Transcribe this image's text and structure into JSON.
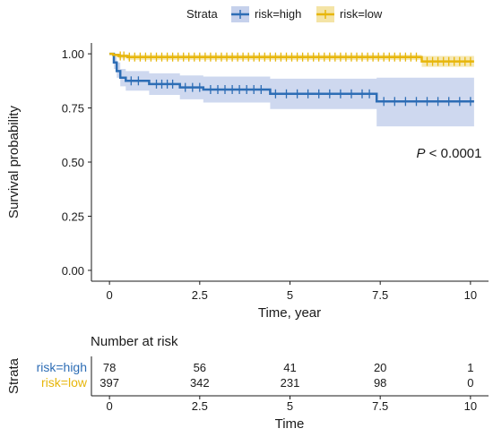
{
  "chart_data": [
    {
      "type": "line",
      "title": "",
      "xlabel": "Time, year",
      "ylabel": "Survival probability",
      "xlim": [
        -0.5,
        10.5
      ],
      "ylim": [
        -0.05,
        1.05
      ],
      "x_ticks": [
        0,
        2.5,
        5,
        7.5,
        10
      ],
      "x_tick_labels": [
        "0",
        "2.5",
        "5",
        "7.5",
        "10"
      ],
      "y_ticks": [
        0,
        0.25,
        0.5,
        0.75,
        1.0
      ],
      "y_tick_labels": [
        "0.00",
        "0.25",
        "0.50",
        "0.75",
        "1.00"
      ],
      "grid": false,
      "legend": {
        "title": "Strata",
        "placement": "top",
        "entries": [
          "risk=high",
          "risk=low"
        ]
      },
      "annotation": {
        "prefix": "P",
        "text": " < 0.0001",
        "x": 8.5,
        "y": 0.52
      },
      "series": [
        {
          "name": "risk=high",
          "color": "#2d6db5",
          "band_color": "#c6d1ec",
          "steps": [
            [
              0,
              1.0
            ],
            [
              0.12,
              0.96
            ],
            [
              0.2,
              0.92
            ],
            [
              0.3,
              0.89
            ],
            [
              0.45,
              0.875
            ],
            [
              1.1,
              0.86
            ],
            [
              1.95,
              0.845
            ],
            [
              2.6,
              0.835
            ],
            [
              4.45,
              0.815
            ],
            [
              7.4,
              0.78
            ],
            [
              10.1,
              0.78
            ]
          ],
          "lower": [
            [
              0,
              1.0
            ],
            [
              0.12,
              0.93
            ],
            [
              0.2,
              0.89
            ],
            [
              0.3,
              0.85
            ],
            [
              0.45,
              0.83
            ],
            [
              1.1,
              0.81
            ],
            [
              1.95,
              0.79
            ],
            [
              2.6,
              0.775
            ],
            [
              4.45,
              0.745
            ],
            [
              7.4,
              0.665
            ],
            [
              10.1,
              0.665
            ]
          ],
          "upper": [
            [
              0,
              1.0
            ],
            [
              0.12,
              0.99
            ],
            [
              0.2,
              0.96
            ],
            [
              0.3,
              0.93
            ],
            [
              0.45,
              0.92
            ],
            [
              1.1,
              0.91
            ],
            [
              1.95,
              0.9
            ],
            [
              2.6,
              0.895
            ],
            [
              4.45,
              0.885
            ],
            [
              7.4,
              0.89
            ],
            [
              10.1,
              0.89
            ]
          ],
          "censor": [
            0.6,
            0.8,
            1.3,
            1.45,
            1.6,
            1.75,
            2.1,
            2.3,
            2.5,
            2.8,
            3.0,
            3.2,
            3.4,
            3.6,
            3.8,
            4.0,
            4.2,
            4.6,
            4.9,
            5.2,
            5.5,
            5.8,
            6.1,
            6.4,
            6.7,
            7.0,
            7.2,
            7.6,
            7.9,
            8.2,
            8.5,
            8.8,
            9.1,
            9.4,
            9.7,
            10.0
          ]
        },
        {
          "name": "risk=low",
          "color": "#e7b60b",
          "band_color": "#f4e4a6",
          "steps": [
            [
              0,
              1.0
            ],
            [
              0.1,
              0.995
            ],
            [
              0.25,
              0.99
            ],
            [
              0.5,
              0.985
            ],
            [
              8.65,
              0.965
            ],
            [
              10.1,
              0.965
            ]
          ],
          "lower": [
            [
              0,
              1.0
            ],
            [
              0.1,
              0.985
            ],
            [
              0.25,
              0.978
            ],
            [
              0.5,
              0.972
            ],
            [
              8.65,
              0.94
            ],
            [
              10.1,
              0.94
            ]
          ],
          "upper": [
            [
              0,
              1.0
            ],
            [
              0.1,
              1.0
            ],
            [
              0.25,
              0.998
            ],
            [
              0.5,
              0.996
            ],
            [
              8.65,
              0.99
            ],
            [
              10.1,
              0.99
            ]
          ],
          "censor": [
            0.3,
            0.4,
            0.55,
            0.7,
            0.85,
            1.0,
            1.15,
            1.3,
            1.45,
            1.6,
            1.75,
            1.9,
            2.05,
            2.2,
            2.35,
            2.5,
            2.65,
            2.8,
            2.95,
            3.1,
            3.25,
            3.4,
            3.55,
            3.7,
            3.85,
            4.0,
            4.15,
            4.3,
            4.45,
            4.6,
            4.75,
            4.9,
            5.05,
            5.2,
            5.35,
            5.5,
            5.65,
            5.8,
            5.95,
            6.1,
            6.25,
            6.4,
            6.55,
            6.7,
            6.85,
            7.0,
            7.15,
            7.3,
            7.45,
            7.6,
            7.75,
            7.9,
            8.05,
            8.2,
            8.35,
            8.5,
            8.8,
            8.95,
            9.1,
            9.25,
            9.4,
            9.55,
            9.7,
            9.85,
            10.0
          ]
        }
      ]
    },
    {
      "type": "table",
      "title": "Number at risk",
      "xlabel": "Time",
      "ylabel": "Strata",
      "xlim": [
        -0.5,
        10.5
      ],
      "x_ticks": [
        0,
        2.5,
        5,
        7.5,
        10
      ],
      "x_tick_labels": [
        "0",
        "2.5",
        "5",
        "7.5",
        "10"
      ],
      "rows": [
        {
          "label": "risk=high",
          "color": "#2d6db5",
          "values": [
            "78",
            "56",
            "41",
            "20",
            "1"
          ]
        },
        {
          "label": "risk=low",
          "color": "#e7b60b",
          "values": [
            "397",
            "342",
            "231",
            "98",
            "0"
          ]
        }
      ]
    }
  ]
}
